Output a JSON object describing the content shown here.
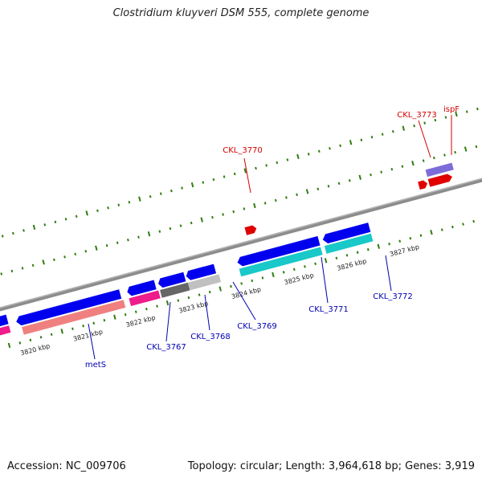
{
  "title": "Clostridium kluyveri DSM 555, complete genome",
  "footer": {
    "accession_label": "Accession:",
    "accession": "NC_009706",
    "topology_label": "Topology:",
    "topology": "circular",
    "length_label": "Length:",
    "length": "3,964,618 bp",
    "genes_label": "Genes:",
    "genes": "3,919"
  },
  "scale": {
    "unit": "kbp",
    "ticks": [
      "3820",
      "3821",
      "3822",
      "3823",
      "3824",
      "3825",
      "3826",
      "3827"
    ]
  },
  "colors": {
    "forward_label": "#d40000",
    "reverse_label": "#0000b0",
    "backbone": "#8c8c8c",
    "tick": "#2f7d10"
  },
  "genes": {
    "forward": [
      {
        "label": "CKL_3770",
        "color": "#e00000"
      },
      {
        "label": "CKL_3773",
        "color": "#e00000"
      },
      {
        "label": "ispF",
        "color": "#e00000"
      }
    ],
    "reverse": [
      {
        "label": "metS",
        "color": "#0000ee"
      },
      {
        "label": "CKL_3767",
        "color": "#0000ee"
      },
      {
        "label": "CKL_3768",
        "color": "#0000ee"
      },
      {
        "label": "CKL_3769",
        "color": "#0000ee"
      },
      {
        "label": "CKL_3771",
        "color": "#0000ee"
      },
      {
        "label": "CKL_3772",
        "color": "#0000ee"
      }
    ]
  }
}
